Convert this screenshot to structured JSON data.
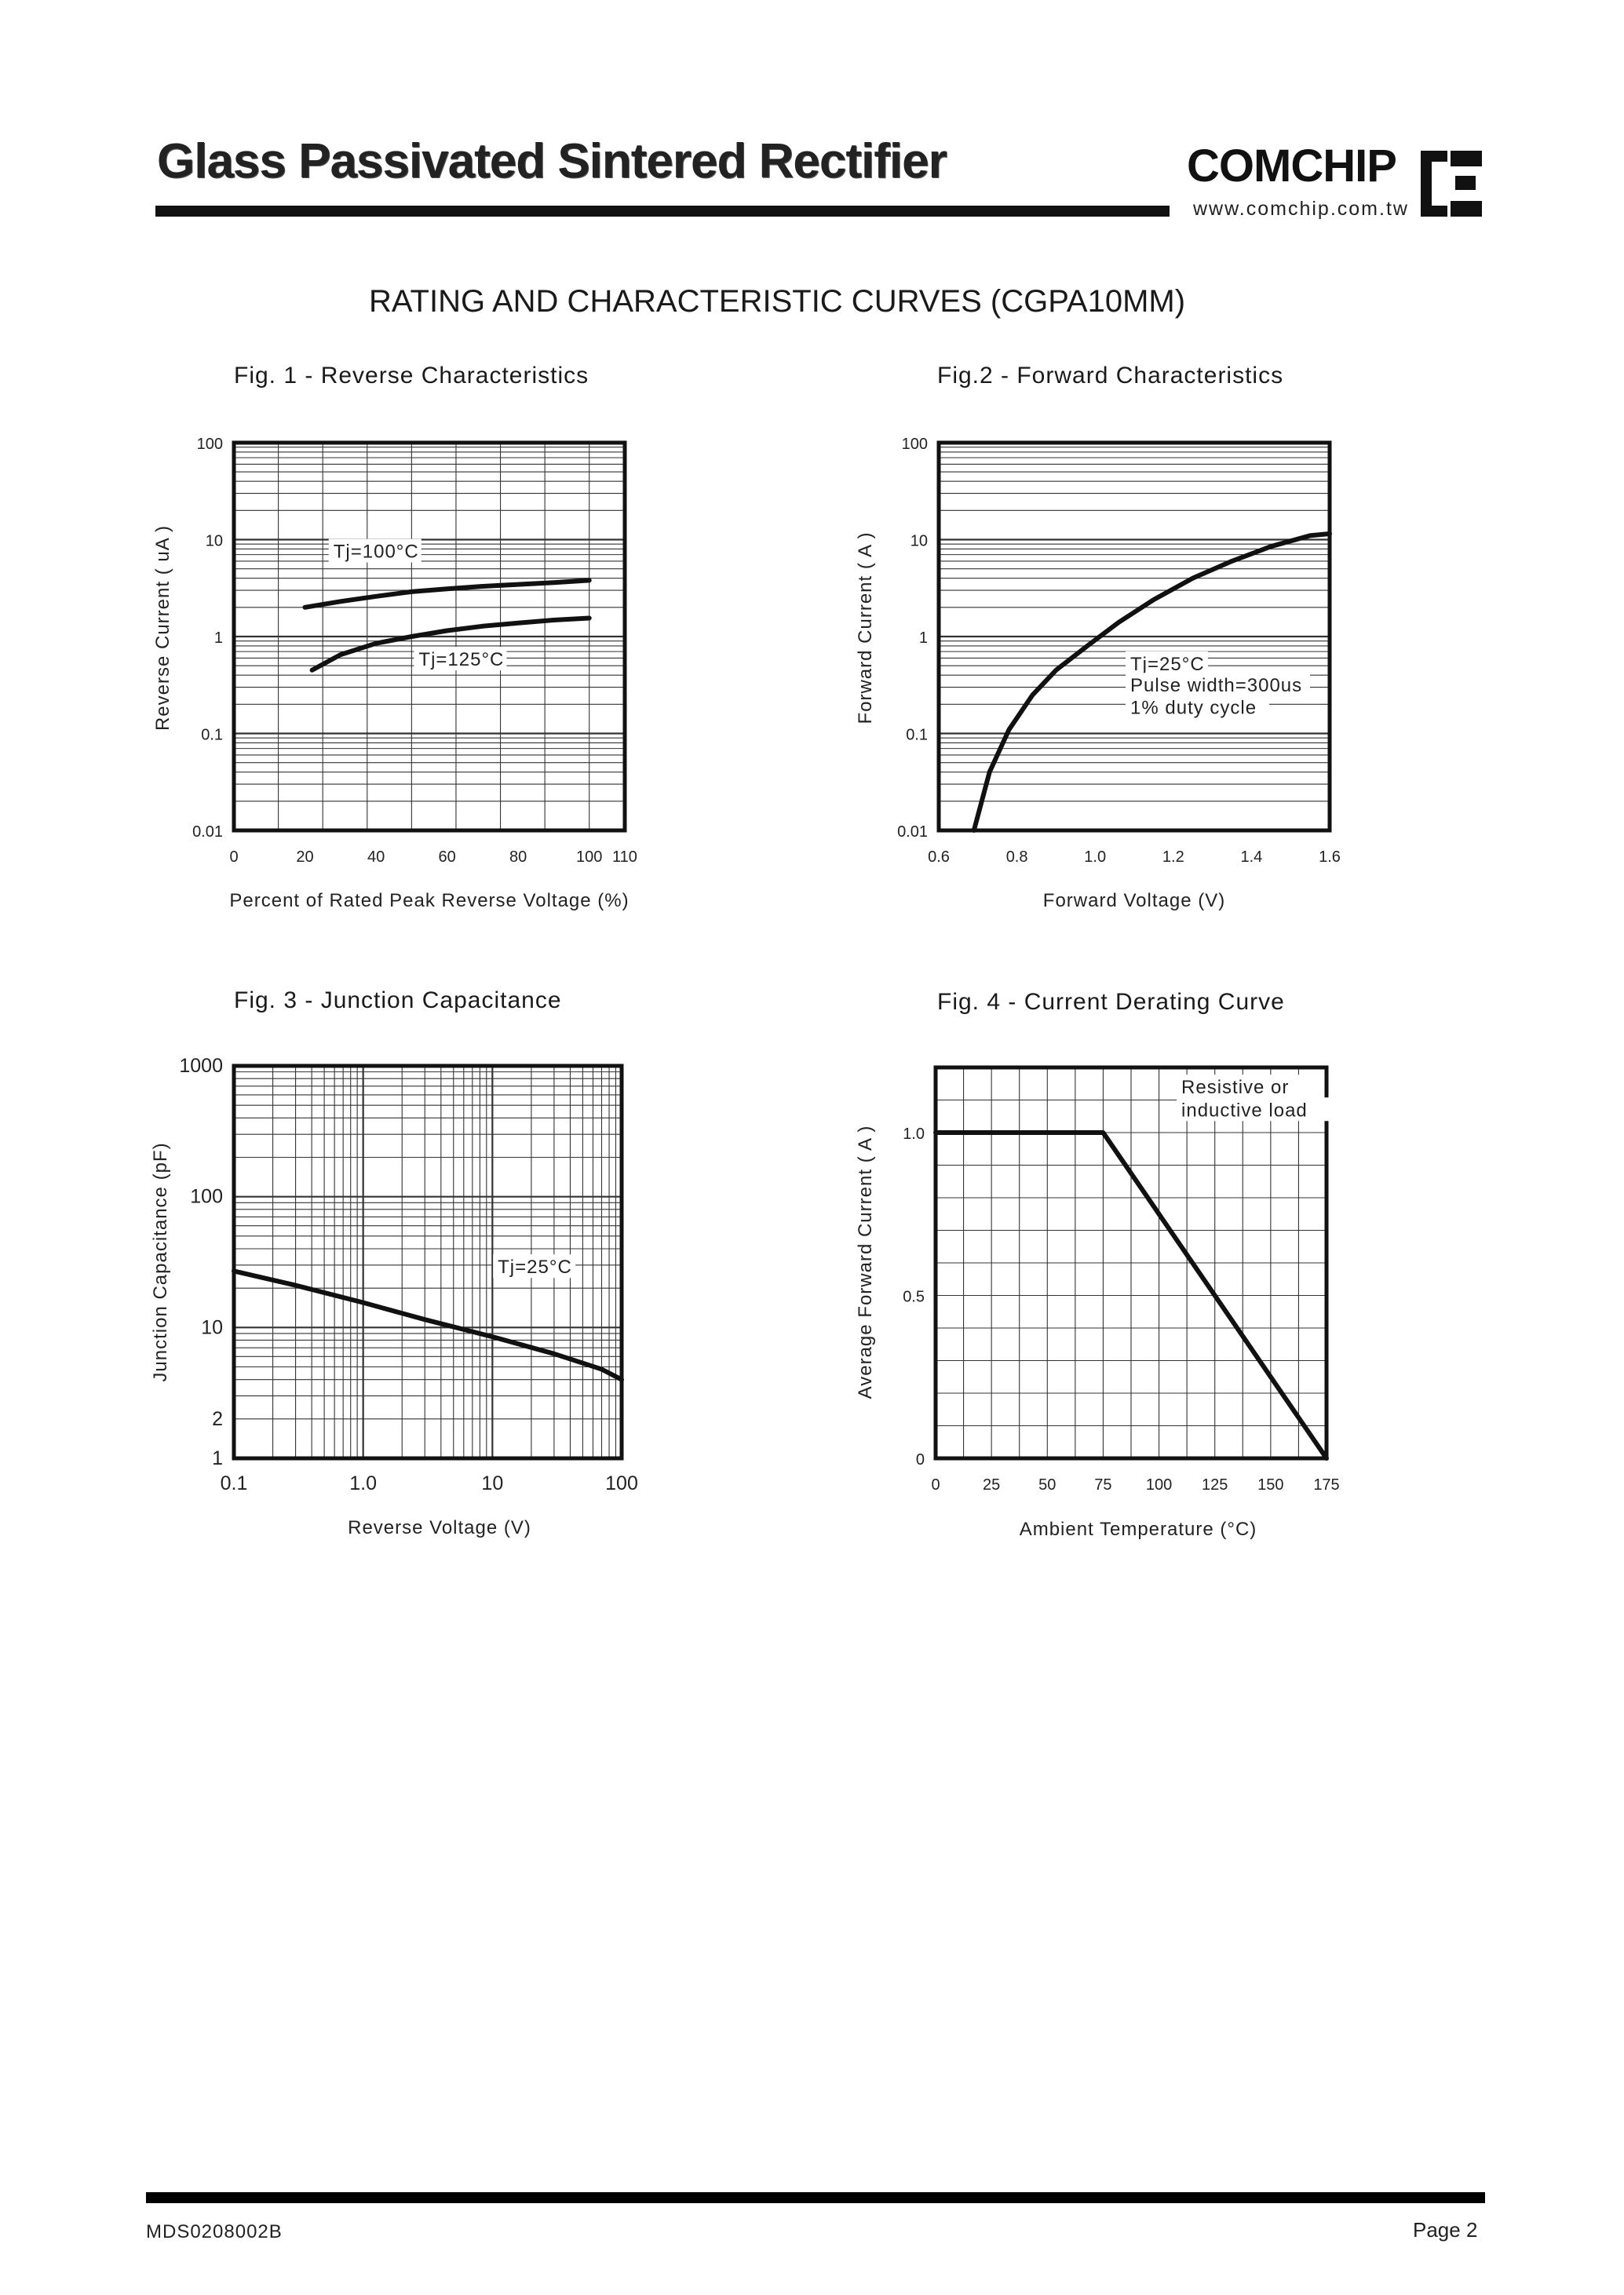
{
  "header": {
    "title": "Glass Passivated Sintered Rectifier",
    "brand": "COMCHIP",
    "url": "www.comchip.com.tw"
  },
  "section_title": "RATING AND CHARACTERISTIC CURVES (CGPA10MM)",
  "footer": {
    "doc_id": "MDS0208002B",
    "page": "Page 2"
  },
  "colors": {
    "ink": "#1a1a1a",
    "grid": "#333333",
    "curve": "#111111"
  },
  "chart_data": [
    {
      "id": "fig1",
      "type": "line",
      "title": "Fig. 1 -  Reverse Characteristics",
      "xlabel": "Percent of Rated Peak Reverse Voltage (%)",
      "ylabel": "Reverse Current ( uA )",
      "x_scale": "linear",
      "y_scale": "log",
      "xlim": [
        0,
        110
      ],
      "ylim": [
        0.01,
        100
      ],
      "x_ticks": [
        0,
        20,
        40,
        60,
        80,
        100,
        110
      ],
      "x_tick_labels": [
        "0",
        "20",
        "40",
        "60",
        "80",
        "100",
        "110"
      ],
      "y_ticks": [
        0.01,
        0.1,
        1,
        10,
        100
      ],
      "y_tick_labels": [
        "0.01",
        "0.1",
        "1",
        "10",
        "100"
      ],
      "grid": true,
      "series": [
        {
          "name": "Tj=100°C",
          "x": [
            20,
            30,
            40,
            50,
            60,
            70,
            80,
            90,
            100
          ],
          "y": [
            2.0,
            2.3,
            2.6,
            2.9,
            3.1,
            3.3,
            3.45,
            3.6,
            3.8
          ]
        },
        {
          "name": "Tj=125°C",
          "x": [
            22,
            30,
            40,
            50,
            60,
            70,
            80,
            90,
            100
          ],
          "y": [
            0.45,
            0.65,
            0.85,
            1.0,
            1.15,
            1.28,
            1.38,
            1.48,
            1.55
          ]
        }
      ],
      "annotations": [
        {
          "text": "Tj=100°C",
          "x": 28,
          "y": 6.5
        },
        {
          "text": "Tj=125°C",
          "x": 52,
          "y": 0.5
        }
      ]
    },
    {
      "id": "fig2",
      "type": "line",
      "title": "Fig.2 -  Forward Characteristics",
      "xlabel": "Forward Voltage (V)",
      "ylabel": "Forward Current ( A )",
      "x_scale": "linear",
      "y_scale": "log",
      "xlim": [
        0.6,
        1.6
      ],
      "ylim": [
        0.01,
        100
      ],
      "x_ticks": [
        0.6,
        0.8,
        1.0,
        1.2,
        1.4,
        1.6
      ],
      "x_tick_labels": [
        "0.6",
        "0.8",
        "1.0",
        "1.2",
        "1.4",
        "1.6"
      ],
      "y_ticks": [
        0.01,
        0.1,
        1,
        10,
        100
      ],
      "y_tick_labels": [
        "0.01",
        "0.1",
        "1",
        "10",
        "100"
      ],
      "grid": true,
      "series": [
        {
          "name": "",
          "x": [
            0.69,
            0.73,
            0.78,
            0.84,
            0.9,
            0.98,
            1.06,
            1.15,
            1.25,
            1.35,
            1.45,
            1.55,
            1.6
          ],
          "y": [
            0.01,
            0.04,
            0.11,
            0.25,
            0.45,
            0.8,
            1.4,
            2.4,
            4.0,
            6.0,
            8.5,
            11.0,
            11.5
          ]
        }
      ],
      "annotations": [
        {
          "text": "Tj=25°C",
          "x": 1.09,
          "y": 0.45
        },
        {
          "text": "Pulse width=300us",
          "x": 1.09,
          "y": 0.27
        },
        {
          "text": "1% duty cycle",
          "x": 1.09,
          "y": 0.16
        }
      ]
    },
    {
      "id": "fig3",
      "type": "line",
      "title": "Fig. 3 -  Junction Capacitance",
      "xlabel": "Reverse Voltage (V)",
      "ylabel": "Junction Capacitance  (pF)",
      "x_scale": "log",
      "y_scale": "log",
      "xlim": [
        0.1,
        100
      ],
      "ylim": [
        1,
        1000
      ],
      "x_ticks": [
        0.1,
        1,
        10,
        100
      ],
      "x_tick_labels": [
        "0.1",
        "1.0",
        "10",
        "100"
      ],
      "y_ticks": [
        1,
        2,
        10,
        100,
        1000
      ],
      "y_tick_labels": [
        "1",
        "2",
        "10",
        "100",
        "1000"
      ],
      "grid": true,
      "series": [
        {
          "name": "Tj=25°C",
          "x": [
            0.1,
            0.3,
            1,
            3,
            10,
            30,
            70,
            100
          ],
          "y": [
            27,
            21,
            15.5,
            11.5,
            8.5,
            6.3,
            4.8,
            4.0
          ]
        }
      ],
      "annotations": [
        {
          "text": "Tj=25°C",
          "x": 11,
          "y": 26
        }
      ]
    },
    {
      "id": "fig4",
      "type": "line",
      "title": "Fig. 4 - Current Derating Curve",
      "xlabel": "Ambient Temperature (°C)",
      "ylabel": "Average Forward Current ( A )",
      "x_scale": "linear",
      "y_scale": "linear",
      "xlim": [
        0,
        175
      ],
      "ylim": [
        0,
        1.2
      ],
      "x_ticks": [
        0,
        25,
        50,
        75,
        100,
        125,
        150,
        175
      ],
      "x_tick_labels": [
        "0",
        "25",
        "50",
        "75",
        "100",
        "125",
        "150",
        "175"
      ],
      "y_ticks": [
        0,
        0.5,
        1.0
      ],
      "y_tick_labels": [
        "0",
        "0.5",
        "1.0"
      ],
      "grid": true,
      "series": [
        {
          "name": "",
          "x": [
            0,
            75,
            175
          ],
          "y": [
            1.0,
            1.0,
            0
          ]
        }
      ],
      "annotations": [
        {
          "text": "Resistive or",
          "x": 110,
          "y": 1.12
        },
        {
          "text": "inductive load",
          "x": 110,
          "y": 1.05
        }
      ]
    }
  ]
}
